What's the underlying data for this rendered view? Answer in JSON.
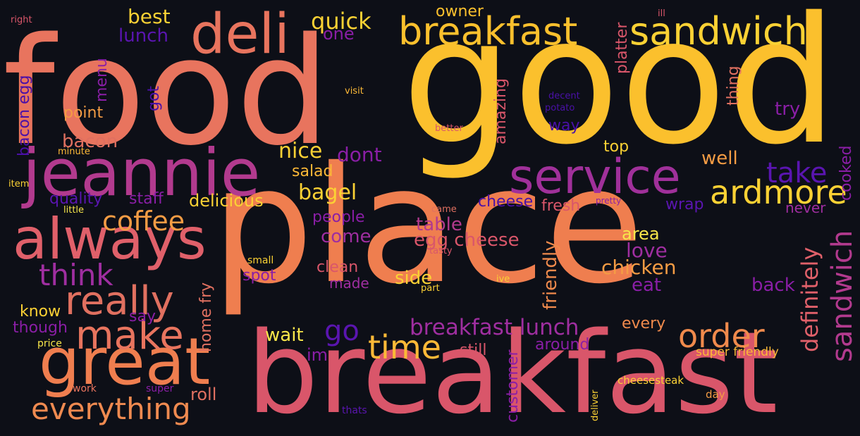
{
  "words": [
    {
      "text": "food",
      "color": "#e8745e"
    },
    {
      "text": "good",
      "color": "#fbc02d"
    },
    {
      "text": "place",
      "color": "#ef7e4f"
    },
    {
      "text": "breakfast",
      "color": "#d9566a"
    },
    {
      "text": "jeannie",
      "color": "#b23a8e"
    },
    {
      "text": "always",
      "color": "#e0606a"
    },
    {
      "text": "great",
      "color": "#ef7e4f"
    },
    {
      "text": "deli",
      "color": "#e8745e"
    },
    {
      "text": "breakfast",
      "color": "#fbc02d"
    },
    {
      "text": "sandwich",
      "color": "#fbd134"
    },
    {
      "text": "service",
      "color": "#a0309a"
    },
    {
      "text": "ardmore",
      "color": "#fbd134"
    },
    {
      "text": "really",
      "color": "#e07060"
    },
    {
      "text": "make",
      "color": "#e8745e"
    },
    {
      "text": "everything",
      "color": "#ef8a50"
    },
    {
      "text": "order",
      "color": "#f08a4c"
    },
    {
      "text": "time",
      "color": "#fcb937"
    },
    {
      "text": "coffee",
      "color": "#f49c44"
    },
    {
      "text": "think",
      "color": "#9f2ea0"
    },
    {
      "text": "take",
      "color": "#5a15b0"
    },
    {
      "text": "sandwich",
      "color": "#b23a8e"
    },
    {
      "text": "definitely",
      "color": "#e0606a"
    },
    {
      "text": "breakfast lunch",
      "color": "#9f2ea0"
    },
    {
      "text": "go",
      "color": "#5a15b0"
    },
    {
      "text": "chicken",
      "color": "#f49c44"
    },
    {
      "text": "love",
      "color": "#9f2ea0"
    },
    {
      "text": "egg cheese",
      "color": "#d9566a"
    },
    {
      "text": "table",
      "color": "#b23a8e"
    },
    {
      "text": "fresh",
      "color": "#d9566a"
    },
    {
      "text": "nice",
      "color": "#fbd134"
    },
    {
      "text": "dont",
      "color": "#8a1ea6"
    },
    {
      "text": "bagel",
      "color": "#fbd134"
    },
    {
      "text": "salad",
      "color": "#fcb937"
    },
    {
      "text": "delicious",
      "color": "#fbd134"
    },
    {
      "text": "staff",
      "color": "#8a1ea6"
    },
    {
      "text": "quality",
      "color": "#5a15b0"
    },
    {
      "text": "bacon",
      "color": "#e07060"
    },
    {
      "text": "point",
      "color": "#f49c44"
    },
    {
      "text": "lunch",
      "color": "#5a15b0"
    },
    {
      "text": "best",
      "color": "#fbd134"
    },
    {
      "text": "quick",
      "color": "#fbd134"
    },
    {
      "text": "one",
      "color": "#8a1ea6"
    },
    {
      "text": "owner",
      "color": "#fbc02d"
    },
    {
      "text": "menu",
      "color": "#8a1ea6"
    },
    {
      "text": "got",
      "color": "#4a10a8"
    },
    {
      "text": "bacon egg",
      "color": "#4a10a8"
    },
    {
      "text": "people",
      "color": "#8a1ea6"
    },
    {
      "text": "come",
      "color": "#9f2ea0"
    },
    {
      "text": "clean",
      "color": "#d9566a"
    },
    {
      "text": "made",
      "color": "#9f2ea0"
    },
    {
      "text": "side",
      "color": "#fbd134"
    },
    {
      "text": "spot",
      "color": "#8a1ea6"
    },
    {
      "text": "wait",
      "color": "#f7e64a"
    },
    {
      "text": "im",
      "color": "#8a1ea6"
    },
    {
      "text": "still",
      "color": "#d9566a"
    },
    {
      "text": "around",
      "color": "#8a1ea6"
    },
    {
      "text": "every",
      "color": "#f08a4c"
    },
    {
      "text": "eat",
      "color": "#8a1ea6"
    },
    {
      "text": "area",
      "color": "#f7e64a"
    },
    {
      "text": "back",
      "color": "#8a1ea6"
    },
    {
      "text": "never",
      "color": "#9f2ea0"
    },
    {
      "text": "wrap",
      "color": "#5a15b0"
    },
    {
      "text": "cheese",
      "color": "#4a10a8"
    },
    {
      "text": "well",
      "color": "#f49c44"
    },
    {
      "text": "top",
      "color": "#fbd134"
    },
    {
      "text": "try",
      "color": "#8a1ea6"
    },
    {
      "text": "way",
      "color": "#4a10a8"
    },
    {
      "text": "know",
      "color": "#fbd134"
    },
    {
      "text": "though",
      "color": "#8a1ea6"
    },
    {
      "text": "say",
      "color": "#8a1ea6"
    },
    {
      "text": "roll",
      "color": "#e07060"
    },
    {
      "text": "super friendly",
      "color": "#fcb937"
    },
    {
      "text": "cheesesteak",
      "color": "#fbd134"
    },
    {
      "text": "day",
      "color": "#f49c44"
    },
    {
      "text": "thats",
      "color": "#5a15b0"
    },
    {
      "text": "work",
      "color": "#e8745e"
    },
    {
      "text": "super",
      "color": "#8a1ea6"
    },
    {
      "text": "price",
      "color": "#f7e64a"
    },
    {
      "text": "small",
      "color": "#fbd134"
    },
    {
      "text": "tasty",
      "color": "#d9566a"
    },
    {
      "text": "came",
      "color": "#e07060"
    },
    {
      "text": "part",
      "color": "#fbd134"
    },
    {
      "text": "ive",
      "color": "#fbd134"
    },
    {
      "text": "little",
      "color": "#f7e64a"
    },
    {
      "text": "minute",
      "color": "#fcb937"
    },
    {
      "text": "item",
      "color": "#fbd134"
    },
    {
      "text": "right",
      "color": "#d9566a"
    },
    {
      "text": "visit",
      "color": "#fcb937"
    },
    {
      "text": "decent",
      "color": "#4a10a8"
    },
    {
      "text": "potato",
      "color": "#4a10a8"
    },
    {
      "text": "better",
      "color": "#d9566a"
    },
    {
      "text": "pretty",
      "color": "#8a1ea6"
    },
    {
      "text": "ill",
      "color": "#d9566a"
    },
    {
      "text": "deliver",
      "color": "#fbd134"
    },
    {
      "text": "amazing",
      "color": "#d9566a"
    },
    {
      "text": "platter",
      "color": "#d9566a"
    },
    {
      "text": "thing",
      "color": "#e07060"
    },
    {
      "text": "cooked",
      "color": "#8a1ea6"
    },
    {
      "text": "friendly",
      "color": "#f08a4c"
    },
    {
      "text": "customer",
      "color": "#8a1ea6"
    },
    {
      "text": "home fry",
      "color": "#e07060"
    }
  ]
}
